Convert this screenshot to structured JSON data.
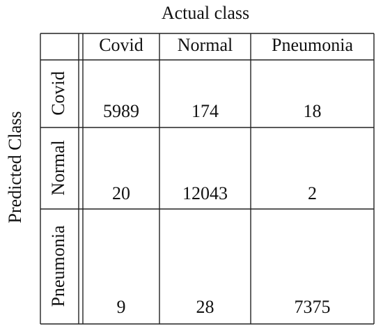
{
  "header": {
    "title": "Actual class"
  },
  "row_axis_label": "Predicted Class",
  "table": {
    "columns": [
      "Covid",
      "Normal",
      "Pneumonia"
    ],
    "rows": [
      {
        "label": "Covid",
        "values": [
          5989,
          174,
          18
        ]
      },
      {
        "label": "Normal",
        "values": [
          20,
          12043,
          2
        ]
      },
      {
        "label": "Pneumonia",
        "values": [
          9,
          28,
          7375
        ]
      }
    ]
  }
}
